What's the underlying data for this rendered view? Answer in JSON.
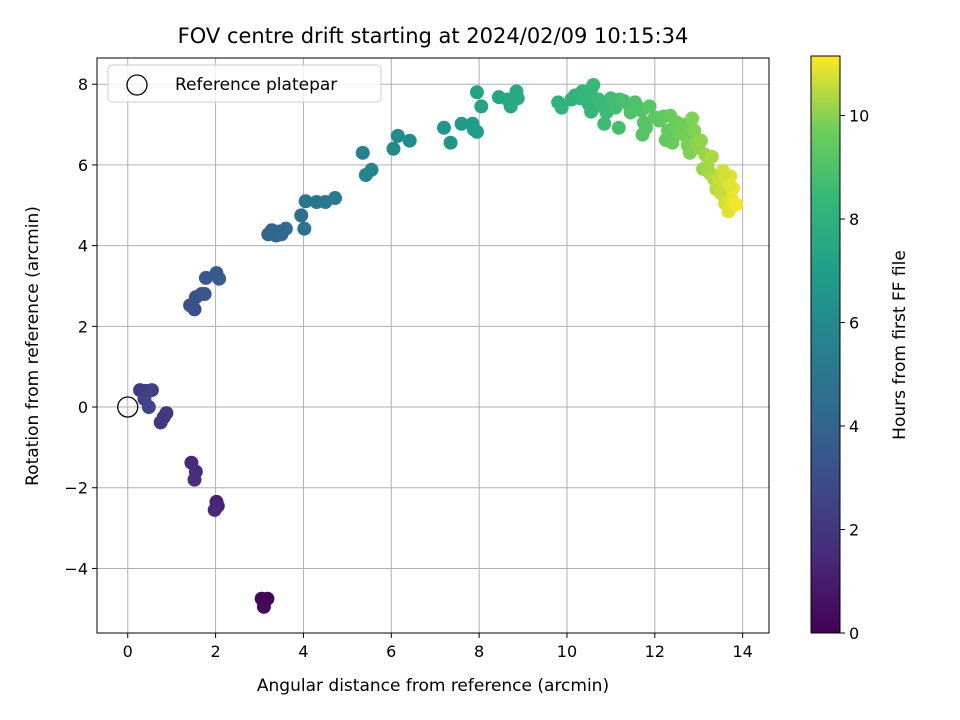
{
  "chart_data": {
    "type": "scatter",
    "title": "FOV centre drift starting at 2024/02/09 10:15:34",
    "xlabel": "Angular distance from reference (arcmin)",
    "ylabel": "Rotation from reference (arcmin)",
    "xlim": [
      -0.7,
      14.6
    ],
    "ylim": [
      -5.6,
      8.65
    ],
    "xticks": [
      0,
      2,
      4,
      6,
      8,
      10,
      12,
      14
    ],
    "yticks": [
      -4,
      -2,
      0,
      2,
      4,
      6,
      8
    ],
    "grid": true,
    "legend": {
      "placement": "top-left",
      "entries": [
        "Reference platepar"
      ]
    },
    "reference": {
      "x": 0,
      "y": 0
    },
    "colorbar": {
      "label": "Hours from first FF file",
      "range": [
        0,
        11.15
      ],
      "ticks": [
        0,
        2,
        4,
        6,
        8,
        10
      ],
      "colormap": "viridis"
    },
    "series": [
      {
        "points": [
          [
            3.05,
            -4.75,
            0.1
          ],
          [
            3.18,
            -4.75,
            0.2
          ],
          [
            3.1,
            -4.95,
            0.3
          ],
          [
            2.02,
            -2.35,
            1.2
          ],
          [
            2.05,
            -2.45,
            1.3
          ],
          [
            1.98,
            -2.55,
            1.4
          ],
          [
            1.45,
            -1.38,
            1.5
          ],
          [
            1.55,
            -1.6,
            1.6
          ],
          [
            1.52,
            -1.8,
            1.7
          ],
          [
            0.75,
            -0.38,
            1.9
          ],
          [
            0.82,
            -0.25,
            2.0
          ],
          [
            0.88,
            -0.15,
            2.1
          ],
          [
            0.28,
            0.42,
            2.2
          ],
          [
            0.42,
            0.4,
            2.3
          ],
          [
            0.55,
            0.42,
            2.4
          ],
          [
            0.38,
            0.2,
            2.5
          ],
          [
            0.48,
            0.0,
            2.6
          ],
          [
            1.42,
            2.52,
            3.0
          ],
          [
            1.52,
            2.42,
            3.1
          ],
          [
            1.55,
            2.72,
            3.2
          ],
          [
            1.68,
            2.8,
            3.3
          ],
          [
            1.75,
            2.8,
            3.4
          ],
          [
            1.78,
            3.2,
            3.5
          ],
          [
            2.02,
            3.32,
            3.6
          ],
          [
            2.08,
            3.18,
            3.7
          ],
          [
            3.2,
            4.28,
            4.0
          ],
          [
            3.28,
            4.38,
            4.1
          ],
          [
            3.38,
            4.25,
            4.2
          ],
          [
            3.5,
            4.28,
            4.3
          ],
          [
            3.6,
            4.42,
            4.4
          ],
          [
            3.32,
            4.3,
            4.1
          ],
          [
            3.45,
            4.35,
            4.25
          ],
          [
            3.95,
            4.75,
            4.6
          ],
          [
            4.02,
            4.42,
            4.7
          ],
          [
            4.05,
            5.1,
            4.8
          ],
          [
            4.3,
            5.08,
            4.9
          ],
          [
            4.5,
            5.08,
            5.0
          ],
          [
            4.72,
            5.18,
            5.1
          ],
          [
            5.35,
            6.3,
            5.5
          ],
          [
            5.42,
            5.75,
            5.6
          ],
          [
            5.55,
            5.88,
            5.7
          ],
          [
            6.05,
            6.4,
            5.9
          ],
          [
            6.15,
            6.72,
            6.0
          ],
          [
            6.42,
            6.6,
            6.1
          ],
          [
            7.2,
            6.92,
            6.5
          ],
          [
            7.35,
            6.55,
            6.6
          ],
          [
            7.6,
            7.02,
            6.8
          ],
          [
            7.85,
            7.02,
            6.9
          ],
          [
            7.95,
            6.82,
            6.95
          ],
          [
            7.88,
            6.88,
            7.0
          ],
          [
            7.95,
            7.8,
            7.2
          ],
          [
            8.05,
            7.45,
            7.3
          ],
          [
            8.45,
            7.68,
            7.4
          ],
          [
            8.65,
            7.62,
            7.5
          ],
          [
            8.72,
            7.45,
            7.55
          ],
          [
            8.85,
            7.82,
            7.6
          ],
          [
            8.88,
            7.65,
            7.65
          ],
          [
            9.8,
            7.55,
            8.0
          ],
          [
            9.88,
            7.42,
            8.05
          ],
          [
            10.1,
            7.62,
            8.1
          ],
          [
            10.18,
            7.72,
            8.15
          ],
          [
            10.3,
            7.65,
            8.2
          ],
          [
            10.35,
            7.82,
            8.25
          ],
          [
            10.42,
            7.72,
            8.3
          ],
          [
            10.55,
            7.88,
            8.35
          ],
          [
            10.6,
            7.98,
            8.4
          ],
          [
            10.5,
            7.5,
            8.3
          ],
          [
            10.55,
            7.32,
            8.35
          ],
          [
            10.72,
            7.62,
            8.45
          ],
          [
            10.8,
            7.45,
            8.5
          ],
          [
            10.9,
            7.3,
            8.55
          ],
          [
            10.85,
            7.02,
            8.55
          ],
          [
            11.0,
            7.65,
            8.6
          ],
          [
            11.05,
            7.52,
            8.65
          ],
          [
            11.1,
            7.42,
            8.7
          ],
          [
            11.2,
            7.62,
            8.75
          ],
          [
            11.18,
            6.92,
            8.8
          ],
          [
            11.3,
            7.58,
            8.85
          ],
          [
            11.4,
            7.5,
            8.9
          ],
          [
            11.45,
            7.3,
            8.95
          ],
          [
            11.55,
            7.55,
            9.0
          ],
          [
            11.62,
            7.42,
            9.05
          ],
          [
            11.7,
            7.35,
            9.1
          ],
          [
            11.75,
            7.05,
            9.15
          ],
          [
            11.72,
            6.75,
            9.15
          ],
          [
            11.8,
            6.92,
            9.2
          ],
          [
            11.88,
            7.45,
            9.25
          ],
          [
            12.0,
            7.18,
            9.3
          ],
          [
            12.1,
            7.1,
            9.35
          ],
          [
            12.2,
            7.2,
            9.4
          ],
          [
            12.25,
            6.62,
            9.45
          ],
          [
            12.3,
            6.85,
            9.5
          ],
          [
            12.35,
            7.22,
            9.55
          ],
          [
            12.4,
            6.55,
            9.55
          ],
          [
            12.45,
            6.95,
            9.6
          ],
          [
            12.5,
            7.05,
            9.65
          ],
          [
            12.55,
            6.78,
            9.7
          ],
          [
            12.65,
            7.0,
            9.75
          ],
          [
            12.7,
            6.72,
            9.8
          ],
          [
            12.75,
            6.48,
            9.85
          ],
          [
            12.8,
            6.3,
            9.9
          ],
          [
            12.85,
            7.15,
            9.9
          ],
          [
            12.9,
            6.85,
            9.95
          ],
          [
            12.95,
            6.55,
            10.0
          ],
          [
            13.0,
            6.42,
            10.05
          ],
          [
            13.05,
            6.6,
            10.1
          ],
          [
            13.1,
            5.9,
            10.15
          ],
          [
            13.15,
            6.25,
            10.2
          ],
          [
            13.2,
            5.95,
            10.25
          ],
          [
            13.25,
            5.8,
            10.3
          ],
          [
            13.3,
            6.2,
            10.35
          ],
          [
            13.35,
            5.65,
            10.4
          ],
          [
            13.4,
            5.4,
            10.5
          ],
          [
            13.45,
            5.5,
            10.55
          ],
          [
            13.5,
            5.3,
            10.6
          ],
          [
            13.55,
            5.85,
            10.7
          ],
          [
            13.6,
            5.05,
            10.75
          ],
          [
            13.65,
            5.6,
            10.8
          ],
          [
            13.68,
            4.85,
            10.85
          ],
          [
            13.72,
            5.72,
            10.9
          ],
          [
            13.75,
            5.15,
            10.95
          ],
          [
            13.78,
            5.42,
            11.0
          ],
          [
            13.85,
            5.02,
            11.05
          ],
          [
            13.45,
            5.65,
            10.6
          ],
          [
            13.6,
            5.7,
            10.7
          ],
          [
            13.7,
            5.5,
            10.85
          ]
        ]
      }
    ]
  }
}
